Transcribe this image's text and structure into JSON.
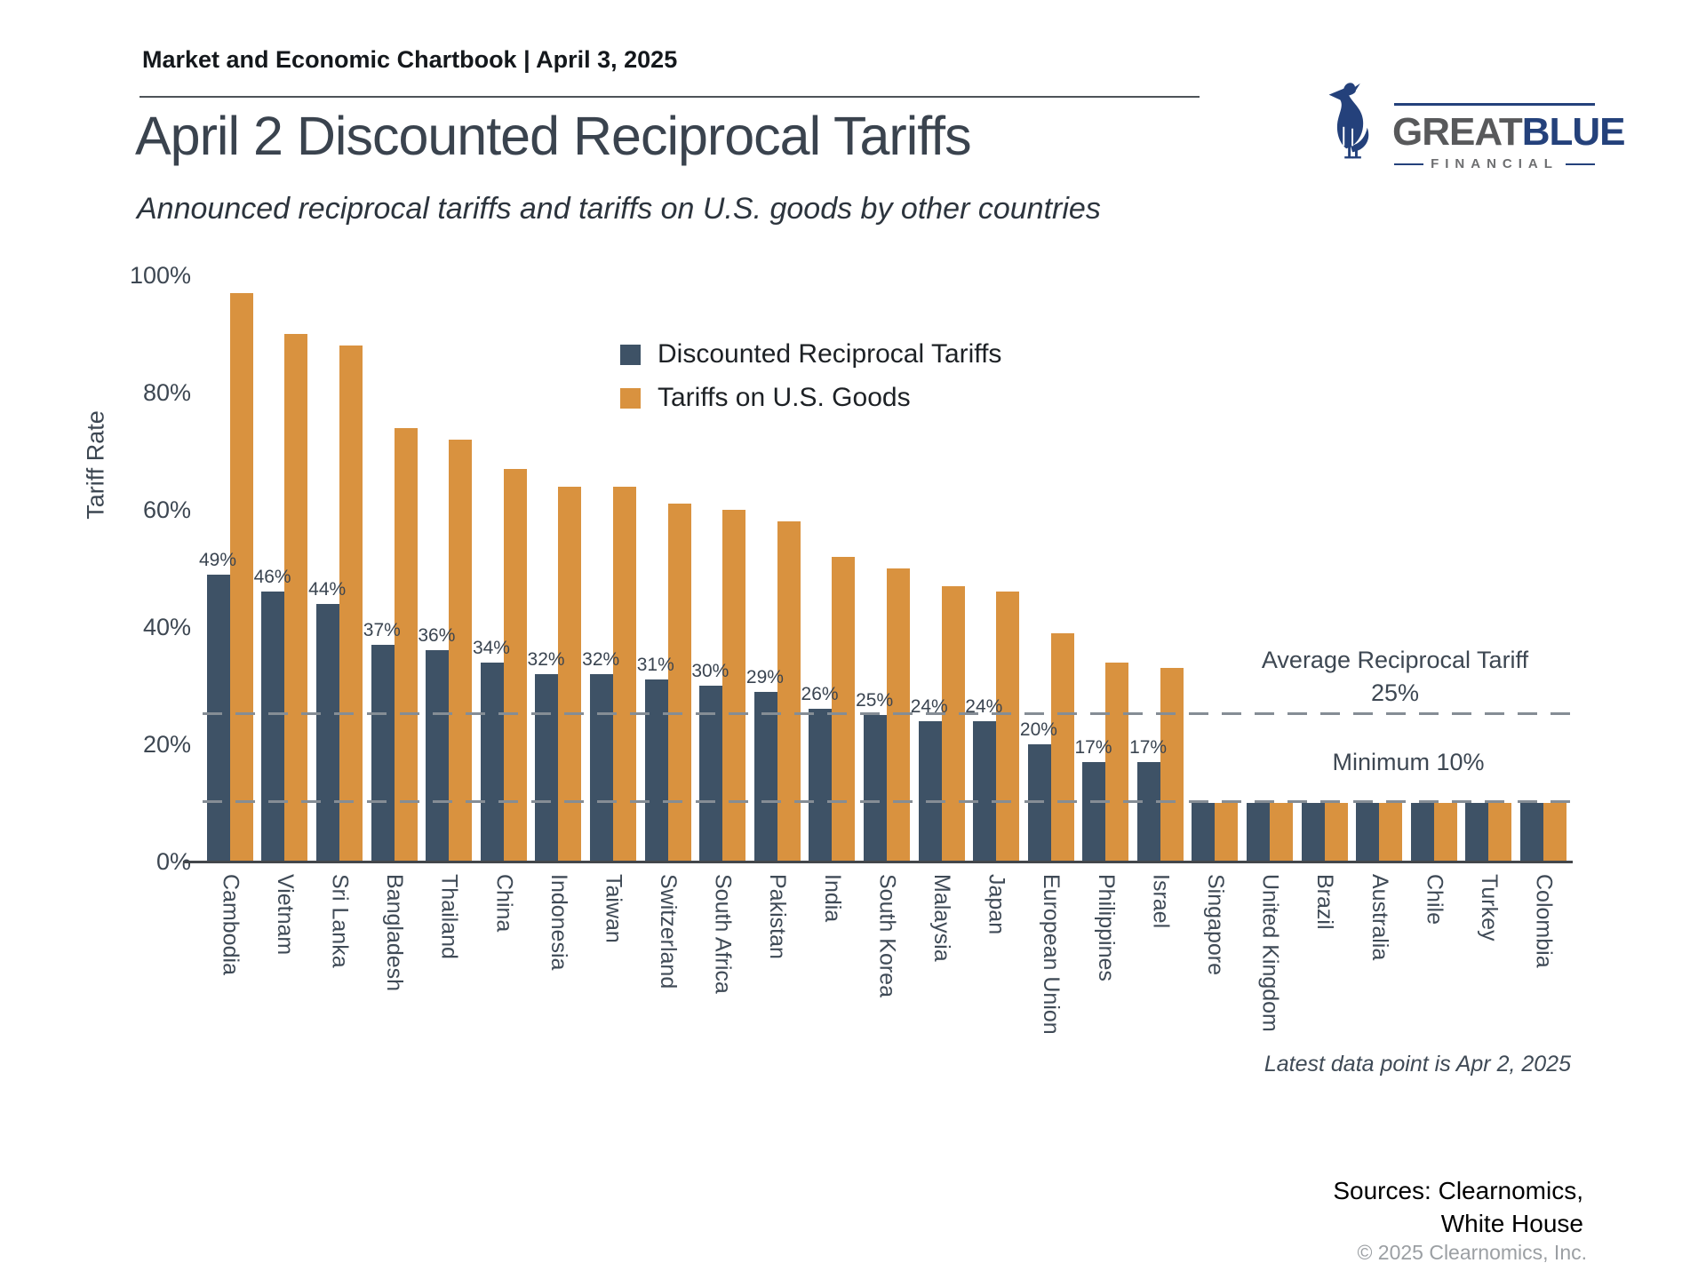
{
  "header": {
    "kicker": "Market and Economic Chartbook | April 3, 2025",
    "title": "April 2 Discounted Reciprocal Tariffs",
    "subtitle": "Announced reciprocal tariffs and tariffs on U.S. goods by other countries"
  },
  "logo": {
    "name_part1": "GREAT",
    "name_part2": "BLUE",
    "tagline": "FINANCIAL",
    "navy": "#24417b",
    "gray": "#58595b"
  },
  "chart_data": {
    "type": "bar",
    "title": "April 2 Discounted Reciprocal Tariffs",
    "subtitle": "Announced reciprocal tariffs and tariffs on U.S. goods by other countries",
    "xlabel": "",
    "ylabel": "Tariff Rate",
    "ylim": [
      0,
      100
    ],
    "yticks": [
      "0%",
      "20%",
      "40%",
      "60%",
      "80%",
      "100%"
    ],
    "grid": false,
    "legend_position": "upper center-left inside plot",
    "colors": {
      "discounted": "#3E5266",
      "us_goods": "#D9923F"
    },
    "categories": [
      "Cambodia",
      "Vietnam",
      "Sri Lanka",
      "Bangladesh",
      "Thailand",
      "China",
      "Indonesia",
      "Taiwan",
      "Switzerland",
      "South Africa",
      "Pakistan",
      "India",
      "South Korea",
      "Malaysia",
      "Japan",
      "European Union",
      "Philippines",
      "Israel",
      "Singapore",
      "United Kingdom",
      "Brazil",
      "Australia",
      "Chile",
      "Turkey",
      "Colombia"
    ],
    "series": [
      {
        "name": "Discounted Reciprocal Tariffs",
        "values": [
          49,
          46,
          44,
          37,
          36,
          34,
          32,
          32,
          31,
          30,
          29,
          26,
          25,
          24,
          24,
          20,
          17,
          17,
          10,
          10,
          10,
          10,
          10,
          10,
          10
        ]
      },
      {
        "name": "Tariffs on U.S. Goods",
        "values": [
          97,
          90,
          88,
          74,
          72,
          67,
          64,
          64,
          61,
          60,
          58,
          52,
          50,
          47,
          46,
          39,
          34,
          33,
          10,
          10,
          10,
          10,
          10,
          10,
          10
        ]
      }
    ],
    "bar_labels": [
      "49%",
      "46%",
      "44%",
      "37%",
      "36%",
      "34%",
      "32%",
      "32%",
      "31%",
      "30%",
      "29%",
      "26%",
      "25%",
      "24%",
      "24%",
      "20%",
      "17%",
      "17%",
      "",
      "",
      "",
      "",
      "",
      "",
      ""
    ],
    "annotations": {
      "average_line": {
        "value": 25,
        "label_line1": "Average Reciprocal Tariff",
        "label_line2": "25%"
      },
      "minimum_line": {
        "value": 10,
        "label": "Minimum 10%"
      }
    },
    "footnote": "Latest data point is Apr 2, 2025"
  },
  "footer": {
    "sources_line1": "Sources: Clearnomics,",
    "sources_line2": "White House",
    "copyright": "© 2025 Clearnomics, Inc."
  }
}
